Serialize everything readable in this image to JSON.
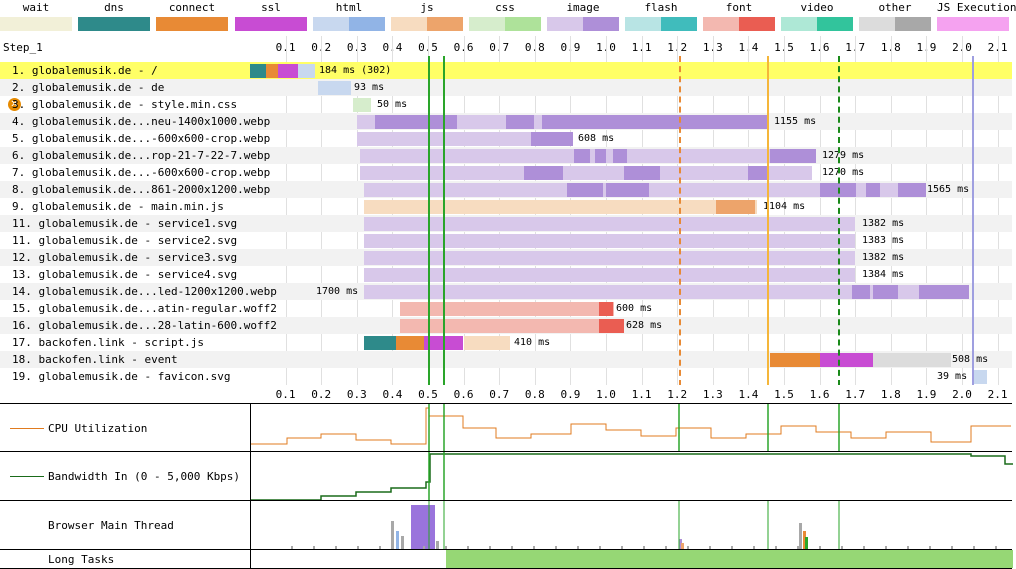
{
  "step_label": "Step_1",
  "legend": [
    {
      "label": "wait",
      "c1": "#f2f0d8",
      "c2": "#f2f0d8"
    },
    {
      "label": "dns",
      "c1": "#2e8a8a",
      "c2": "#2e8a8a"
    },
    {
      "label": "connect",
      "c1": "#e88a35",
      "c2": "#e88a35"
    },
    {
      "label": "ssl",
      "c1": "#c84cd3",
      "c2": "#c84cd3"
    },
    {
      "label": "html",
      "c1": "#c8d8ef",
      "c2": "#91b4e6"
    },
    {
      "label": "js",
      "c1": "#f7dcc0",
      "c2": "#eda46b"
    },
    {
      "label": "css",
      "c1": "#d6edcc",
      "c2": "#aee29a"
    },
    {
      "label": "image",
      "c1": "#d8c8ea",
      "c2": "#ae8fd8"
    },
    {
      "label": "flash",
      "c1": "#b8e4e4",
      "c2": "#40bcbc"
    },
    {
      "label": "font",
      "c1": "#f3b8b0",
      "c2": "#ea5d52"
    },
    {
      "label": "video",
      "c1": "#aee8d6",
      "c2": "#32c49c"
    },
    {
      "label": "other",
      "c1": "#dcdcdc",
      "c2": "#a8a8a8"
    },
    {
      "label": "JS Execution",
      "c1": "#f5a2f0",
      "c2": "#f5a2f0"
    }
  ],
  "ticks": [
    "0.1",
    "0.2",
    "0.3",
    "0.4",
    "0.5",
    "0.6",
    "0.7",
    "0.8",
    "0.9",
    "1.0",
    "1.1",
    "1.2",
    "1.3",
    "1.4",
    "1.5",
    "1.6",
    "1.7",
    "1.8",
    "1.9",
    "2.0",
    "2.1"
  ],
  "requests": [
    {
      "label": "1. globalemusik.de - /",
      "time": "184 ms (302)",
      "highlight": true
    },
    {
      "label": "2. globalemusik.de - de",
      "time": "93 ms"
    },
    {
      "label": "3. globalemusik.de - style.min.css",
      "time": "50 ms",
      "error": true,
      "error_icon": "x-circle-icon"
    },
    {
      "label": "4. globalemusik.de...neu-1400x1000.webp",
      "time": "1155 ms"
    },
    {
      "label": "5. globalemusik.de...-600x600-crop.webp",
      "time": "608 ms"
    },
    {
      "label": "6. globalemusik.de...rop-21-7-22-7.webp",
      "time": "1279 ms"
    },
    {
      "label": "7. globalemusik.de...-600x600-crop.webp",
      "time": "1270 ms"
    },
    {
      "label": "8. globalemusik.de...861-2000x1200.webp",
      "time": "1565 ms"
    },
    {
      "label": "9. globalemusik.de - main.min.js",
      "time": "1104 ms"
    },
    {
      "label": "11. globalemusik.de - service1.svg",
      "time": "1382 ms"
    },
    {
      "label": "11. globalemusik.de - service2.svg",
      "time": "1383 ms"
    },
    {
      "label": "12. globalemusik.de - service3.svg",
      "time": "1382 ms"
    },
    {
      "label": "13. globalemusik.de - service4.svg",
      "time": "1384 ms"
    },
    {
      "label": "14. globalemusik.de...led-1200x1200.webp",
      "time": "1700 ms"
    },
    {
      "label": "15. globalemusik.de...atin-regular.woff2",
      "time": "600 ms"
    },
    {
      "label": "16. globalemusik.de...28-latin-600.woff2",
      "time": "628 ms"
    },
    {
      "label": "17. backofen.link - script.js",
      "time": "410 ms"
    },
    {
      "label": "18. backofen.link - event",
      "time": "508 ms"
    },
    {
      "label": "19. globalemusik.de - favicon.svg",
      "time": "39 ms"
    }
  ],
  "panels": {
    "cpu": "CPU Utilization",
    "bandwidth": "Bandwidth In (0 - 5,000 Kbps)",
    "main_thread": "Browser Main Thread",
    "long_tasks": "Long Tasks"
  },
  "colors": {
    "highlight": "#ffff66",
    "cpu_line": "#e07b1f",
    "bandwidth_line": "#1a6b1a",
    "long_task": "#96d775",
    "main_thread_purple": "#9a74dc"
  }
}
